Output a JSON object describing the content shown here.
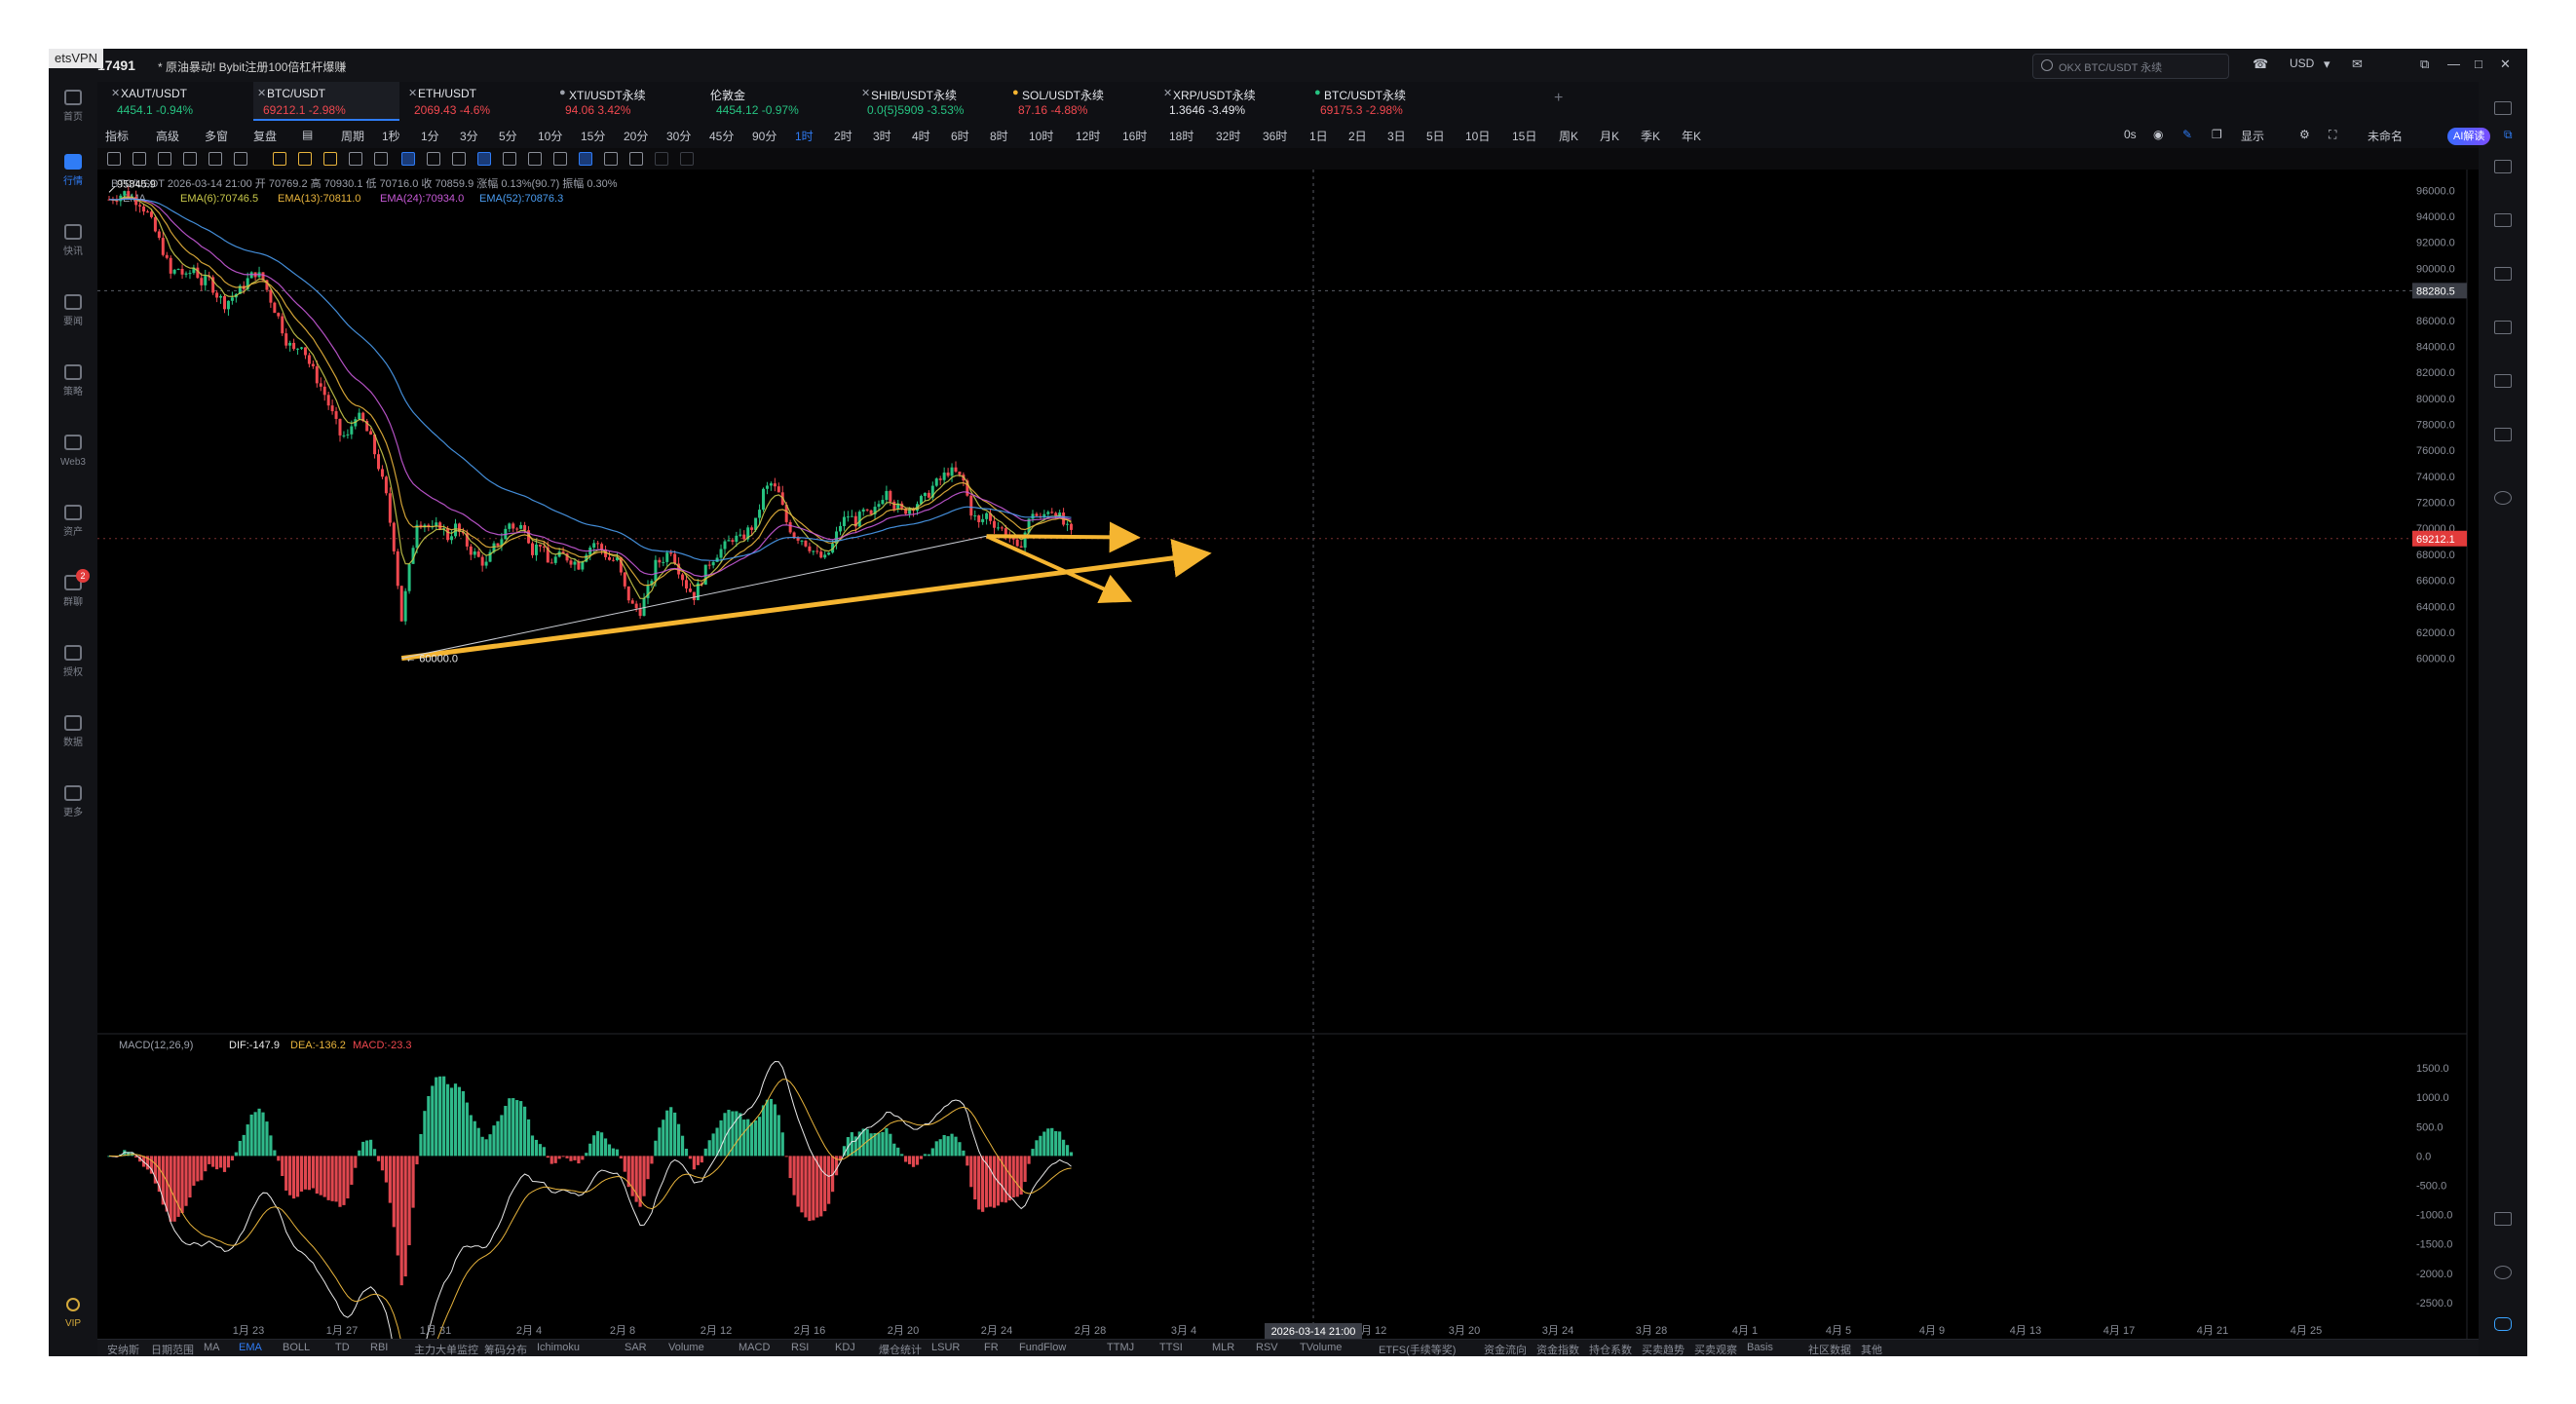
{
  "window": {
    "vpn_label": "etsVPN",
    "account_id": "17491",
    "notice": "* 原油暴动! Bybit注册100倍杠杆爆赚",
    "search_placeholder": "OKX BTC/USDT 永续",
    "currency": "USD"
  },
  "sidebar": {
    "items": [
      {
        "label": "首页",
        "icon": "home-icon"
      },
      {
        "label": "行情",
        "icon": "chart-icon",
        "active": true
      },
      {
        "label": "快讯",
        "icon": "news-icon"
      },
      {
        "label": "要闻",
        "icon": "doc-icon"
      },
      {
        "label": "策略",
        "icon": "robot-icon"
      },
      {
        "label": "Web3",
        "icon": "web3-icon"
      },
      {
        "label": "资产",
        "icon": "wallet-icon"
      },
      {
        "label": "群聊",
        "icon": "chat-icon",
        "badge": "2"
      },
      {
        "label": "授权",
        "icon": "key-icon"
      },
      {
        "label": "数据",
        "icon": "data-icon"
      },
      {
        "label": "更多",
        "icon": "grid-icon"
      }
    ],
    "vip_label": "VIP"
  },
  "tabs": [
    {
      "name": "XAUT/USDT",
      "price": "4454.1",
      "change": "-0.94%",
      "color": "#26c281"
    },
    {
      "name": "BTC/USDT",
      "price": "69212.1",
      "change": "-2.98%",
      "color": "#f0484f",
      "active": true
    },
    {
      "name": "ETH/USDT",
      "price": "2069.43",
      "change": "-4.6%",
      "color": "#f0484f"
    },
    {
      "name": "XTI/USDT永续",
      "price": "94.06",
      "change": "3.42%",
      "color": "#f0484f"
    },
    {
      "name": "伦敦金",
      "price": "4454.12",
      "change": "-0.97%",
      "color": "#26c281"
    },
    {
      "name": "SHIB/USDT永续",
      "price": "0.0{5}5909",
      "change": "-3.53%",
      "color": "#26c281"
    },
    {
      "name": "SOL/USDT永续",
      "price": "87.16",
      "change": "-4.88%",
      "color": "#f0484f"
    },
    {
      "name": "XRP/USDT永续",
      "price": "1.3646",
      "change": "-3.49%",
      "color": "#e3e5ea"
    },
    {
      "name": "BTC/USDT永续",
      "price": "69175.3",
      "change": "-2.98%",
      "color": "#f0484f"
    }
  ],
  "toolbar": {
    "left": [
      "指标",
      "高级",
      "多窗",
      "复盘",
      "周期"
    ],
    "intervals": [
      "1秒",
      "1分",
      "3分",
      "5分",
      "10分",
      "15分",
      "20分",
      "30分",
      "45分",
      "90分",
      "1时",
      "2时",
      "3时",
      "4时",
      "6时",
      "8时",
      "10时",
      "12时",
      "16时",
      "18时",
      "32时",
      "36时",
      "1日",
      "2日",
      "3日",
      "5日",
      "10日",
      "15日",
      "周K",
      "月K",
      "季K",
      "年K"
    ],
    "selected_interval": "1时",
    "right": [
      "0s",
      "显示",
      "未命名",
      "AI解读"
    ]
  },
  "chart_data": {
    "type": "candlestick",
    "symbol_line": "BTC/USDT  2026-03-14 21:00  开 70769.2  高 70930.1  低 70716.0  收 70859.9  涨幅 0.13%(90.7)  振幅 0.30%",
    "ema_label": "EMA",
    "ema": [
      {
        "name": "EMA(6):70746.5",
        "color": "#c8c84a"
      },
      {
        "name": "EMA(13):70811.0",
        "color": "#e8b43c"
      },
      {
        "name": "EMA(24):70934.0",
        "color": "#c85ad8"
      },
      {
        "name": "EMA(52):70876.3",
        "color": "#4a9cf0"
      }
    ],
    "y_ticks": [
      "96000.0",
      "94000.0",
      "92000.0",
      "90000.0",
      "88280.5",
      "86000.0",
      "84000.0",
      "82000.0",
      "80000.0",
      "78000.0",
      "76000.0",
      "74000.0",
      "72000.0",
      "70000.0",
      "69212.1",
      "68000.0",
      "66000.0",
      "64000.0",
      "62000.0",
      "60000.0"
    ],
    "ylim": [
      59000,
      97600
    ],
    "high_label": "95845.9",
    "low_label": "60000.0",
    "last_price": 69212.1,
    "crosshair_price": 88280.5,
    "crosshair_time": "2026-03-14 21:00",
    "x_ticks": [
      "1月 23",
      "1月 27",
      "1月 31",
      "2月 4",
      "2月 8",
      "2月 12",
      "2月 16",
      "2月 20",
      "2月 24",
      "2月 28",
      "3月 4",
      "3月 8",
      "3月 12",
      "3月 20",
      "3月 24",
      "3月 28",
      "4月 1",
      "4月 5",
      "4月 9",
      "4月 13",
      "4月 17",
      "4月 21",
      "4月 25"
    ],
    "close_path": [
      [
        0,
        95300
      ],
      [
        2,
        95800
      ],
      [
        4,
        95100
      ],
      [
        5,
        94200
      ],
      [
        7,
        91400
      ],
      [
        8,
        89500
      ],
      [
        9,
        90000
      ],
      [
        10,
        89200
      ],
      [
        11,
        90100
      ],
      [
        12,
        88900
      ],
      [
        13,
        89100
      ],
      [
        14,
        88000
      ],
      [
        15,
        87300
      ],
      [
        17,
        88300
      ],
      [
        18,
        89100
      ],
      [
        19,
        89700
      ],
      [
        20,
        89100
      ],
      [
        21,
        87600
      ],
      [
        22,
        86200
      ],
      [
        23,
        84500
      ],
      [
        24,
        83600
      ],
      [
        25,
        84300
      ],
      [
        26,
        82700
      ],
      [
        28,
        80300
      ],
      [
        30,
        77200
      ],
      [
        31,
        77000
      ],
      [
        32,
        78800
      ],
      [
        33,
        78100
      ],
      [
        34,
        76800
      ],
      [
        35,
        74800
      ],
      [
        36,
        72400
      ],
      [
        37,
        68600
      ],
      [
        38,
        63000
      ],
      [
        39,
        66900
      ],
      [
        40,
        70600
      ],
      [
        41,
        70400
      ],
      [
        42,
        69800
      ],
      [
        43,
        70300
      ],
      [
        44,
        69300
      ],
      [
        45,
        70100
      ],
      [
        46,
        69200
      ],
      [
        47,
        68300
      ],
      [
        48,
        67700
      ],
      [
        49,
        67200
      ],
      [
        50,
        68500
      ],
      [
        51,
        69300
      ],
      [
        52,
        70400
      ],
      [
        53,
        69900
      ],
      [
        54,
        70300
      ],
      [
        55,
        68300
      ],
      [
        56,
        68900
      ],
      [
        57,
        67300
      ],
      [
        58,
        67700
      ],
      [
        59,
        67900
      ],
      [
        60,
        67600
      ],
      [
        61,
        67200
      ],
      [
        62,
        68300
      ],
      [
        63,
        68900
      ],
      [
        64,
        68400
      ],
      [
        65,
        67600
      ],
      [
        66,
        67500
      ],
      [
        67,
        65300
      ],
      [
        68,
        64000
      ],
      [
        69,
        63700
      ],
      [
        70,
        65200
      ],
      [
        71,
        67200
      ],
      [
        72,
        67700
      ],
      [
        73,
        68400
      ],
      [
        74,
        66900
      ],
      [
        75,
        65600
      ],
      [
        76,
        64800
      ],
      [
        77,
        66100
      ],
      [
        78,
        67400
      ],
      [
        79,
        68100
      ],
      [
        80,
        68600
      ],
      [
        81,
        69300
      ],
      [
        82,
        69100
      ],
      [
        83,
        69800
      ],
      [
        84,
        70400
      ],
      [
        85,
        72800
      ],
      [
        86,
        73400
      ],
      [
        87,
        72600
      ],
      [
        88,
        70500
      ],
      [
        89,
        69500
      ],
      [
        90,
        69200
      ],
      [
        91,
        68600
      ],
      [
        92,
        67900
      ],
      [
        93,
        67600
      ],
      [
        94,
        68700
      ],
      [
        95,
        70300
      ],
      [
        96,
        71000
      ],
      [
        97,
        70500
      ],
      [
        98,
        71200
      ],
      [
        99,
        70800
      ],
      [
        100,
        71900
      ],
      [
        101,
        73200
      ],
      [
        102,
        71800
      ],
      [
        103,
        71300
      ],
      [
        104,
        71600
      ],
      [
        105,
        72000
      ],
      [
        106,
        72300
      ],
      [
        107,
        73200
      ],
      [
        108,
        73700
      ],
      [
        109,
        74400
      ],
      [
        110,
        74200
      ],
      [
        111,
        73600
      ],
      [
        112,
        71300
      ],
      [
        113,
        70300
      ],
      [
        114,
        71100
      ],
      [
        115,
        70400
      ],
      [
        116,
        69900
      ],
      [
        117,
        69300
      ],
      [
        118,
        68200
      ],
      [
        119,
        69700
      ],
      [
        120,
        71300
      ],
      [
        121,
        70600
      ],
      [
        122,
        71500
      ],
      [
        123,
        71300
      ],
      [
        124,
        70300
      ],
      [
        125,
        69500
      ]
    ],
    "trend_lines": [
      {
        "from": [
          38,
          60000
        ],
        "to": [
          142,
          68000
        ],
        "color": "#f5b531",
        "arrow": true
      },
      {
        "from": [
          114,
          69400
        ],
        "to": [
          133,
          69300
        ],
        "color": "#f5b531",
        "arrow": true
      },
      {
        "from": [
          114,
          69400
        ],
        "to": [
          132,
          64600
        ],
        "color": "#f5b531",
        "arrow": true
      },
      {
        "from": [
          38,
          60000
        ],
        "to": [
          114,
          69400
        ],
        "color": "#c9ccd3",
        "arrow": false
      }
    ],
    "macd": {
      "label": "MACD(12,26,9)",
      "dif": "DIF:-147.9",
      "dea": "DEA:-136.2",
      "macd": "MACD:-23.3",
      "y_ticks": [
        "1500.0",
        "1000.0",
        "500.0",
        "0.0",
        "-500.0",
        "-1000.0",
        "-1500.0",
        "-2000.0",
        "-2500.0"
      ],
      "ylim": [
        -2700,
        1700
      ]
    }
  },
  "bottom_tabs": [
    "安纳斯",
    "日期范围",
    "MA",
    "EMA",
    "BOLL",
    "TD",
    "RBI",
    "主力大单监控",
    "筹码分布",
    "Ichimoku",
    "SAR",
    "Volume",
    "MACD",
    "RSI",
    "KDJ",
    "爆仓统计",
    "LSUR",
    "FR",
    "FundFlow",
    "TTMJ",
    "TTSI",
    "MLR",
    "RSV",
    "TVolume",
    "ETFS(手续等奖)",
    "资金流向",
    "资金指数",
    "持仓系数",
    "买卖趋势",
    "买卖观察",
    "Basis",
    "社区数据",
    "其他"
  ],
  "bottom_selected": "EMA"
}
